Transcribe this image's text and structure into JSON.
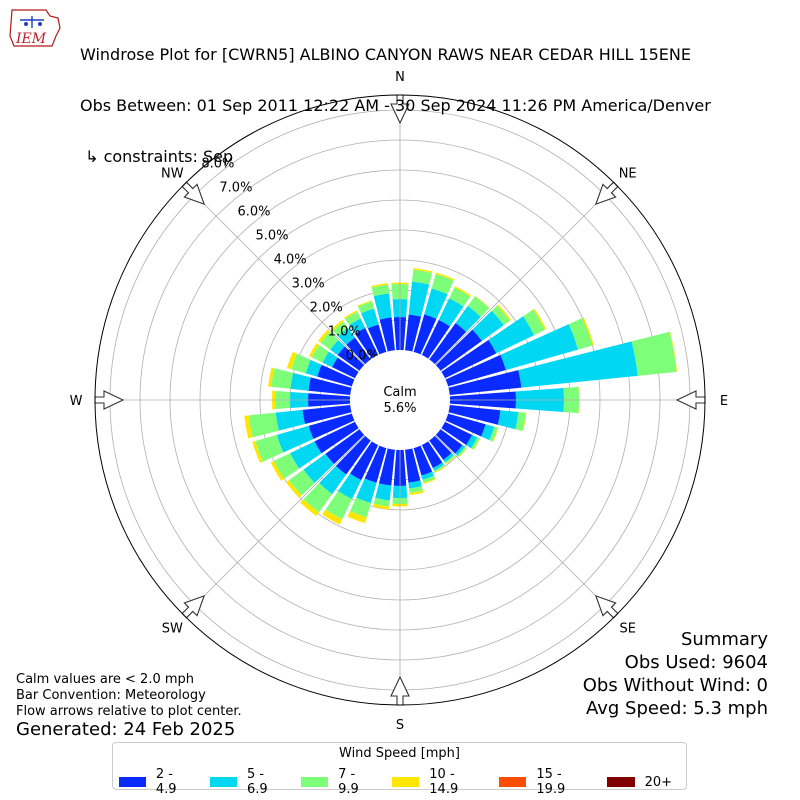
{
  "header": {
    "line1": "Windrose Plot for [CWRN5] ALBINO CANYON RAWS NEAR CEDAR HILL 15ENE",
    "line2": "Obs Between: 01 Sep 2011 12:22 AM - 30 Sep 2024 11:26 PM America/Denver",
    "line3": " ↳ constraints: Sep",
    "logo_text": "IEM"
  },
  "summary": {
    "title": "Summary",
    "obs_used": "Obs Used: 9604",
    "obs_without_wind": "Obs Without Wind: 0",
    "avg_speed": "Avg Speed: 5.3 mph"
  },
  "notes": {
    "calm_note": "Calm values are < 2.0 mph",
    "bar_convention": "Bar Convention: Meteorology",
    "flow_arrows": "Flow arrows relative to plot center.",
    "generated": "Generated: 24 Feb 2025"
  },
  "center": {
    "label": "Calm",
    "value": "5.6%"
  },
  "chart_data": {
    "type": "windrose",
    "radial_max": 8.5,
    "radial_ticks": [
      "0.0%",
      "1.0%",
      "2.0%",
      "3.0%",
      "4.0%",
      "5.0%",
      "6.0%",
      "7.0%",
      "8.0%"
    ],
    "compass": [
      "N",
      "NE",
      "E",
      "SE",
      "S",
      "SW",
      "W",
      "NW"
    ],
    "legend_title": "Wind Speed [mph]",
    "speed_bins": [
      {
        "label": "2 - 4.9",
        "color": "#0a2bff"
      },
      {
        "label": "5 - 6.9",
        "color": "#00d7f2"
      },
      {
        "label": "7 - 9.9",
        "color": "#7dff7a"
      },
      {
        "label": "10 - 14.9",
        "color": "#ffe600"
      },
      {
        "label": "15 - 19.9",
        "color": "#ff4d00"
      },
      {
        "label": "20+",
        "color": "#800000"
      }
    ],
    "directions": [
      0,
      10,
      20,
      30,
      40,
      50,
      60,
      70,
      80,
      90,
      100,
      110,
      120,
      130,
      140,
      150,
      160,
      170,
      180,
      190,
      200,
      210,
      220,
      230,
      240,
      250,
      260,
      270,
      280,
      290,
      300,
      310,
      320,
      330,
      340,
      350
    ],
    "cumulative_percent": [
      [
        1.1,
        1.7,
        2.2,
        2.25,
        2.25,
        2.25
      ],
      [
        1.2,
        2.3,
        2.7,
        2.75,
        2.75,
        2.75
      ],
      [
        1.3,
        2.2,
        2.7,
        2.75,
        2.75,
        2.75
      ],
      [
        1.3,
        2.1,
        2.5,
        2.55,
        2.55,
        2.55
      ],
      [
        1.5,
        2.2,
        2.6,
        2.62,
        2.62,
        2.62
      ],
      [
        1.7,
        2.6,
        2.85,
        2.9,
        2.9,
        2.9
      ],
      [
        1.9,
        3.3,
        3.7,
        3.75,
        3.75,
        3.75
      ],
      [
        2.0,
        4.5,
        5.0,
        5.05,
        5.05,
        5.05
      ],
      [
        2.4,
        6.3,
        7.6,
        7.62,
        7.62,
        7.62
      ],
      [
        2.2,
        3.8,
        4.3,
        4.32,
        4.32,
        4.32
      ],
      [
        1.7,
        2.3,
        2.55,
        2.57,
        2.57,
        2.57
      ],
      [
        1.3,
        1.6,
        1.72,
        1.74,
        1.74,
        1.74
      ],
      [
        1.0,
        1.2,
        1.28,
        1.3,
        1.3,
        1.3
      ],
      [
        0.9,
        1.0,
        1.06,
        1.08,
        1.08,
        1.08
      ],
      [
        0.8,
        0.9,
        0.95,
        0.97,
        0.97,
        0.97
      ],
      [
        0.85,
        0.95,
        1.0,
        1.03,
        1.03,
        1.03
      ],
      [
        0.95,
        1.1,
        1.2,
        1.24,
        1.24,
        1.24
      ],
      [
        1.1,
        1.3,
        1.45,
        1.52,
        1.52,
        1.52
      ],
      [
        1.2,
        1.6,
        1.8,
        1.88,
        1.88,
        1.88
      ],
      [
        1.2,
        1.7,
        1.9,
        2.0,
        2.0,
        2.0
      ],
      [
        1.2,
        1.9,
        2.4,
        2.6,
        2.6,
        2.6
      ],
      [
        1.3,
        2.0,
        2.75,
        2.95,
        2.95,
        2.95
      ],
      [
        1.4,
        2.2,
        2.95,
        3.1,
        3.1,
        3.1
      ],
      [
        1.4,
        2.3,
        2.9,
        3.02,
        3.02,
        3.02
      ],
      [
        1.5,
        2.4,
        3.0,
        3.12,
        3.12,
        3.12
      ],
      [
        1.5,
        2.6,
        3.35,
        3.45,
        3.45,
        3.45
      ],
      [
        1.6,
        2.5,
        3.4,
        3.55,
        3.55,
        3.55
      ],
      [
        1.4,
        2.0,
        2.5,
        2.6,
        2.6,
        2.6
      ],
      [
        1.4,
        2.0,
        2.65,
        2.75,
        2.75,
        2.75
      ],
      [
        1.2,
        1.6,
        2.1,
        2.25,
        2.25,
        2.25
      ],
      [
        0.85,
        1.2,
        1.6,
        1.7,
        1.7,
        1.7
      ],
      [
        0.9,
        1.2,
        1.6,
        1.7,
        1.7,
        1.7
      ],
      [
        0.9,
        1.3,
        1.55,
        1.62,
        1.62,
        1.62
      ],
      [
        1.0,
        1.35,
        1.6,
        1.65,
        1.65,
        1.65
      ],
      [
        0.95,
        1.5,
        1.75,
        1.78,
        1.78,
        1.78
      ],
      [
        1.1,
        1.9,
        2.2,
        2.25,
        2.25,
        2.25
      ]
    ]
  }
}
